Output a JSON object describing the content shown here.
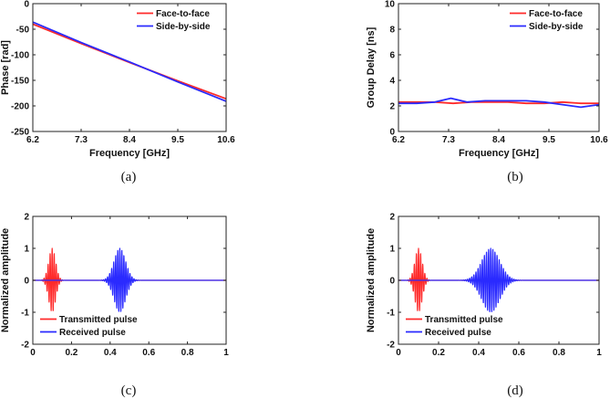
{
  "colors": {
    "red": "#ff2a2a",
    "blue": "#2a2aff",
    "axis": "#222222"
  },
  "chart_data": [
    {
      "id": "a",
      "type": "line",
      "panel_label": "(a)",
      "xlabel": "Frequency [GHz]",
      "ylabel": "Phase [rad]",
      "xlim": [
        6.2,
        10.6
      ],
      "ylim": [
        -250,
        0
      ],
      "xticks": [
        6.2,
        7.3,
        8.4,
        9.5,
        10.6
      ],
      "xtick_labels": [
        "6.2",
        "7.3",
        "8.4",
        "9.5",
        "10.6"
      ],
      "yticks": [
        0,
        -50,
        -100,
        -150,
        -200,
        -250
      ],
      "ytick_labels": [
        "0",
        "-50",
        "-100",
        "-150",
        "-200",
        "-250"
      ],
      "legend": [
        "Face-to-face",
        "Side-by-side"
      ],
      "legend_position": "top-right",
      "series": [
        {
          "name": "Face-to-face",
          "color": "red",
          "x": [
            6.2,
            7.3,
            8.4,
            9.5,
            10.6
          ],
          "y": [
            -40,
            -78,
            -115,
            -151,
            -186
          ]
        },
        {
          "name": "Side-by-side",
          "color": "blue",
          "x": [
            6.2,
            7.3,
            8.4,
            9.5,
            10.6
          ],
          "y": [
            -36,
            -76,
            -114,
            -153,
            -191
          ]
        }
      ]
    },
    {
      "id": "b",
      "type": "line",
      "panel_label": "(b)",
      "xlabel": "Frequency [GHz]",
      "ylabel": "Group Delay [ns]",
      "xlim": [
        6.2,
        10.6
      ],
      "ylim": [
        0,
        10
      ],
      "xticks": [
        6.2,
        7.3,
        8.4,
        9.5,
        10.6
      ],
      "xtick_labels": [
        "6.2",
        "7.3",
        "8.4",
        "9.5",
        "10.6"
      ],
      "yticks": [
        0,
        2,
        4,
        6,
        8,
        10
      ],
      "ytick_labels": [
        "0",
        "2",
        "4",
        "6",
        "8",
        "10"
      ],
      "legend": [
        "Face-to-face",
        "Side-by-side"
      ],
      "legend_position": "top-right",
      "series": [
        {
          "name": "Face-to-face",
          "color": "red",
          "x": [
            6.2,
            6.6,
            7.0,
            7.4,
            7.8,
            8.2,
            8.6,
            9.0,
            9.4,
            9.8,
            10.2,
            10.6
          ],
          "y": [
            2.3,
            2.3,
            2.3,
            2.2,
            2.3,
            2.3,
            2.3,
            2.2,
            2.2,
            2.3,
            2.2,
            2.2
          ]
        },
        {
          "name": "Side-by-side",
          "color": "blue",
          "x": [
            6.2,
            6.6,
            7.0,
            7.35,
            7.7,
            8.1,
            8.6,
            9.0,
            9.4,
            9.8,
            10.2,
            10.6
          ],
          "y": [
            2.2,
            2.2,
            2.3,
            2.6,
            2.3,
            2.4,
            2.4,
            2.4,
            2.3,
            2.1,
            1.9,
            2.1
          ]
        }
      ]
    },
    {
      "id": "c",
      "type": "line",
      "panel_label": "(c)",
      "xlabel": "",
      "ylabel": "Normalized amplitude",
      "xlim": [
        0,
        1
      ],
      "ylim": [
        -2,
        2
      ],
      "xticks": [
        0,
        0.2,
        0.4,
        0.6,
        0.8,
        1
      ],
      "xtick_labels": [
        "0",
        "0.2",
        "0.4",
        "0.6",
        "0.8",
        "1"
      ],
      "yticks": [
        2,
        1,
        0,
        -1,
        -2
      ],
      "ytick_labels": [
        "2",
        "1",
        "0",
        "-1",
        "-2"
      ],
      "legend": [
        "Transmitted pulse",
        "Received pulse"
      ],
      "legend_position": "bottom-left",
      "series": [
        {
          "name": "Transmitted pulse",
          "color": "red",
          "pulse": {
            "center": 0.1,
            "width": 0.018,
            "amplitude": 1.0,
            "cycles_per_unit": 95,
            "span": [
              0.03,
              0.17
            ]
          }
        },
        {
          "name": "Received pulse",
          "color": "blue",
          "pulse": {
            "center": 0.45,
            "width": 0.03,
            "amplitude": 1.0,
            "cycles_per_unit": 95,
            "span": [
              0.33,
              0.57
            ]
          }
        }
      ]
    },
    {
      "id": "d",
      "type": "line",
      "panel_label": "(d)",
      "xlabel": "",
      "ylabel": "Normalized amplitude",
      "xlim": [
        0,
        1
      ],
      "ylim": [
        -2,
        2
      ],
      "xticks": [
        0,
        0.2,
        0.4,
        0.6,
        0.8,
        1
      ],
      "xtick_labels": [
        "0",
        "0.2",
        "0.4",
        "0.6",
        "0.8",
        "1"
      ],
      "yticks": [
        2,
        1,
        0,
        -1,
        -2
      ],
      "ytick_labels": [
        "2",
        "1",
        "0",
        "-1",
        "-2"
      ],
      "legend": [
        "Transmitted pulse",
        "Received pulse"
      ],
      "legend_position": "bottom-left",
      "series": [
        {
          "name": "Transmitted pulse",
          "color": "red",
          "pulse": {
            "center": 0.1,
            "width": 0.018,
            "amplitude": 1.0,
            "cycles_per_unit": 95,
            "span": [
              0.03,
              0.17
            ]
          }
        },
        {
          "name": "Received pulse",
          "color": "blue",
          "pulse": {
            "center": 0.46,
            "width": 0.045,
            "amplitude": 1.0,
            "cycles_per_unit": 95,
            "span": [
              0.3,
              0.62
            ]
          }
        }
      ]
    }
  ]
}
